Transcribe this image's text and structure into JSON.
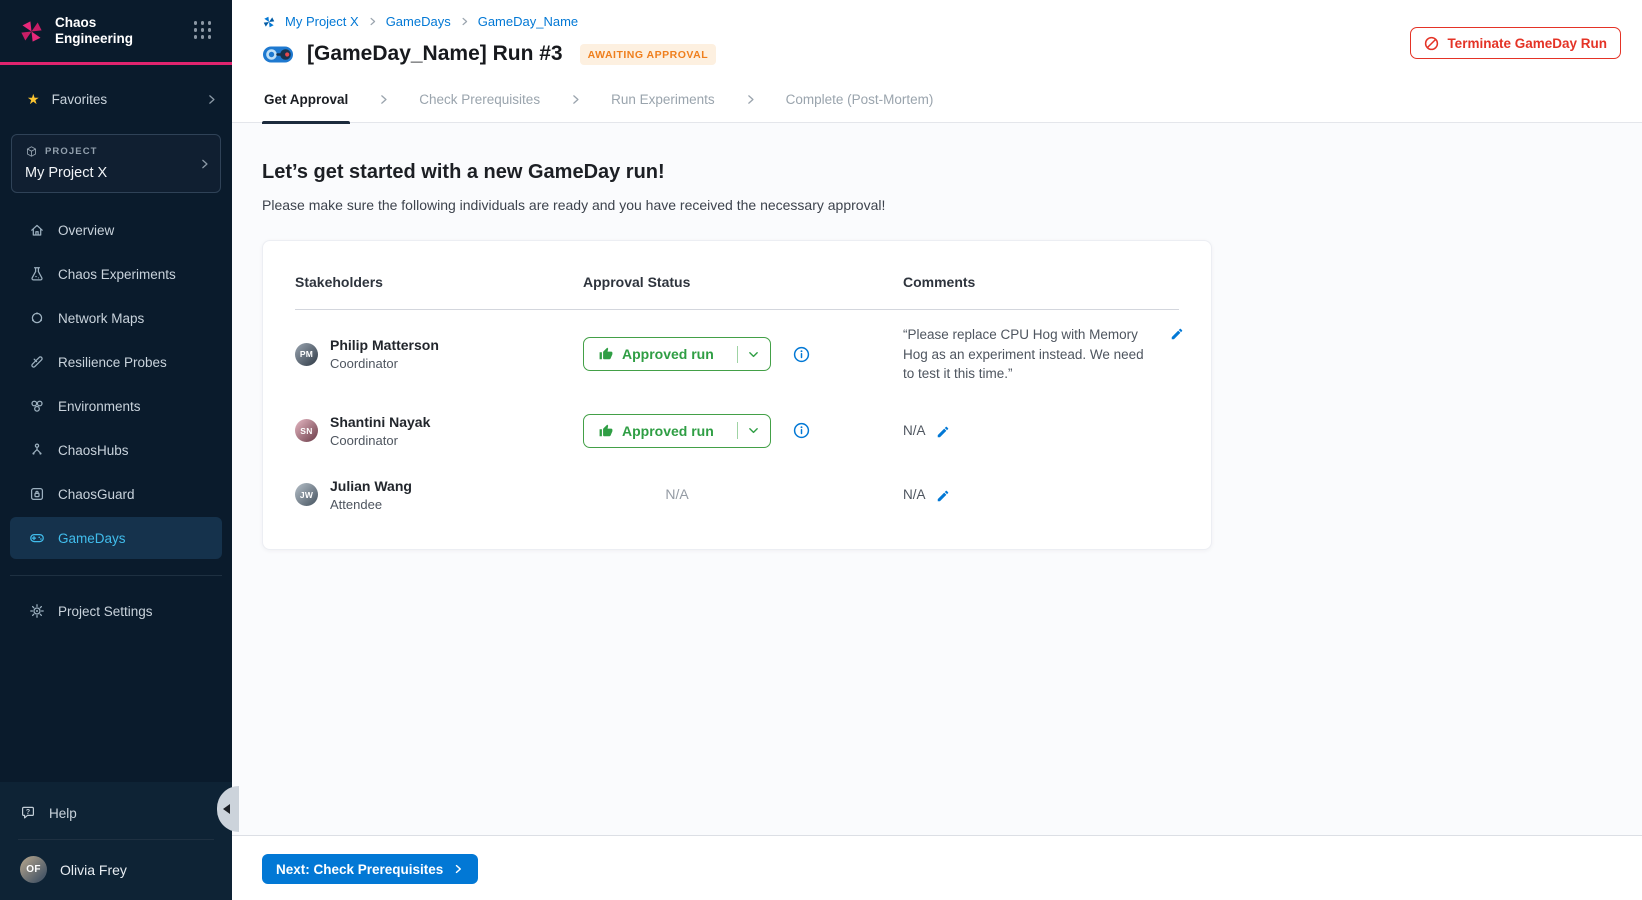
{
  "brand": {
    "line1": "Chaos",
    "line2": "Engineering"
  },
  "sidebar": {
    "favorites_label": "Favorites",
    "project_label": "PROJECT",
    "project_name": "My Project X",
    "items": [
      {
        "label": "Overview",
        "icon": "home-icon",
        "active": false
      },
      {
        "label": "Chaos Experiments",
        "icon": "flask-icon",
        "active": false
      },
      {
        "label": "Network Maps",
        "icon": "network-icon",
        "active": false
      },
      {
        "label": "Resilience Probes",
        "icon": "probe-icon",
        "active": false
      },
      {
        "label": "Environments",
        "icon": "environments-icon",
        "active": false
      },
      {
        "label": "ChaosHubs",
        "icon": "hub-icon",
        "active": false
      },
      {
        "label": "ChaosGuard",
        "icon": "guard-lock-icon",
        "active": false
      },
      {
        "label": "GameDays",
        "icon": "gamepad-icon",
        "active": true
      }
    ],
    "settings_label": "Project Settings",
    "help_label": "Help",
    "user_name": "Olivia Frey",
    "user_initials": "OF"
  },
  "header": {
    "breadcrumb": [
      "My Project X",
      "GameDays",
      "GameDay_Name"
    ],
    "title": "[GameDay_Name] Run #3",
    "status_badge": "AWAITING APPROVAL",
    "terminate_label": "Terminate GameDay Run"
  },
  "tabs": [
    {
      "label": "Get Approval",
      "active": true
    },
    {
      "label": "Check Prerequisites",
      "active": false
    },
    {
      "label": "Run Experiments",
      "active": false
    },
    {
      "label": "Complete (Post-Mortem)",
      "active": false
    }
  ],
  "main": {
    "heading": "Let’s get started with a new GameDay run!",
    "subheading": "Please make sure the following individuals are ready and you have received the necessary approval!",
    "table": {
      "columns": [
        "Stakeholders",
        "Approval Status",
        "Comments"
      ],
      "rows": [
        {
          "name": "Philip Matterson",
          "role": "Coordinator",
          "initials": "PM",
          "approval": {
            "type": "approved",
            "label": "Approved run"
          },
          "comment": "“Please replace CPU Hog with Memory Hog as an experiment instead. We need to test it this time.”"
        },
        {
          "name": "Shantini Nayak",
          "role": "Coordinator",
          "initials": "SN",
          "approval": {
            "type": "approved",
            "label": "Approved run"
          },
          "comment": "N/A"
        },
        {
          "name": "Julian Wang",
          "role": "Attendee",
          "initials": "JW",
          "approval": {
            "type": "na",
            "label": "N/A"
          },
          "comment": "N/A"
        }
      ]
    }
  },
  "footer": {
    "next_label": "Next: Check Prerequisites"
  },
  "colors": {
    "sidebar_bg": "#0a1b2c",
    "accent_pink": "#e0246f",
    "link_blue": "#0278d5",
    "active_nav_cyan": "#41bdec",
    "success_green": "#2f9e44",
    "danger_red": "#e43326",
    "badge_orange": "#ef7f1d",
    "badge_bg": "#fdf0e0"
  }
}
